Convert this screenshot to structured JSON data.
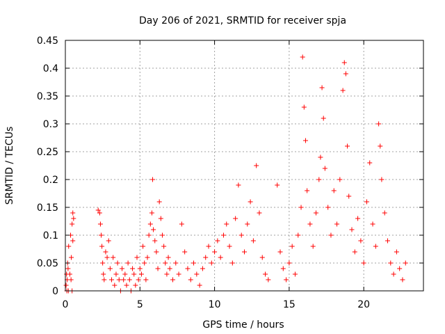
{
  "chart_data": {
    "type": "scatter",
    "title": "Day 206 of 2021, SRMTID for receiver spja",
    "xlabel": "GPS time / hours",
    "ylabel": "SRMTID / TECUs",
    "xlim": [
      0,
      24
    ],
    "ylim": [
      0,
      0.45
    ],
    "xticks": [
      0,
      5,
      10,
      15,
      20
    ],
    "yticks": [
      0,
      0.05,
      0.1,
      0.15,
      0.2,
      0.25,
      0.3,
      0.35,
      0.4,
      0.45
    ],
    "xtick_labels": [
      "0",
      "5",
      "10",
      "15",
      "20"
    ],
    "ytick_labels": [
      "0",
      "0.05",
      "0.1",
      "0.15",
      "0.2",
      "0.25",
      "0.3",
      "0.35",
      "0.4",
      "0.45"
    ],
    "grid": true,
    "marker": "+",
    "color": "#ff0000",
    "series": [
      {
        "name": "SRMTID",
        "points": [
          [
            0.05,
            0.01
          ],
          [
            0.08,
            0.03
          ],
          [
            0.1,
            0.0
          ],
          [
            0.12,
            0.02
          ],
          [
            0.15,
            0.05
          ],
          [
            0.18,
            0.04
          ],
          [
            0.2,
            0.0
          ],
          [
            0.22,
            0.08
          ],
          [
            0.3,
            0.03
          ],
          [
            0.35,
            0.1
          ],
          [
            0.4,
            0.06
          ],
          [
            0.45,
            0.12
          ],
          [
            0.5,
            0.14
          ],
          [
            0.5,
            0.09
          ],
          [
            0.55,
            0.13
          ],
          [
            0.45,
            0.0
          ],
          [
            0.38,
            0.02
          ],
          [
            2.2,
            0.145
          ],
          [
            2.3,
            0.14
          ],
          [
            2.35,
            0.12
          ],
          [
            2.4,
            0.1
          ],
          [
            2.45,
            0.08
          ],
          [
            2.5,
            0.05
          ],
          [
            2.55,
            0.03
          ],
          [
            2.6,
            0.02
          ],
          [
            2.7,
            0.07
          ],
          [
            2.8,
            0.06
          ],
          [
            2.9,
            0.09
          ],
          [
            3.0,
            0.04
          ],
          [
            3.1,
            0.02
          ],
          [
            3.2,
            0.06
          ],
          [
            3.3,
            0.01
          ],
          [
            3.4,
            0.03
          ],
          [
            3.5,
            0.05
          ],
          [
            3.6,
            0.02
          ],
          [
            3.7,
            0.0
          ],
          [
            3.8,
            0.04
          ],
          [
            3.9,
            0.02
          ],
          [
            4.0,
            0.03
          ],
          [
            4.1,
            0.01
          ],
          [
            4.2,
            0.05
          ],
          [
            4.3,
            0.02
          ],
          [
            4.4,
            0.0
          ],
          [
            4.5,
            0.04
          ],
          [
            4.6,
            0.03
          ],
          [
            4.7,
            0.01
          ],
          [
            4.8,
            0.06
          ],
          [
            4.9,
            0.02
          ],
          [
            5.0,
            0.04
          ],
          [
            5.1,
            0.03
          ],
          [
            5.2,
            0.08
          ],
          [
            5.3,
            0.05
          ],
          [
            5.4,
            0.02
          ],
          [
            5.5,
            0.06
          ],
          [
            5.6,
            0.1
          ],
          [
            5.7,
            0.12
          ],
          [
            5.8,
            0.14
          ],
          [
            5.85,
            0.2
          ],
          [
            5.9,
            0.11
          ],
          [
            6.0,
            0.09
          ],
          [
            6.1,
            0.07
          ],
          [
            6.2,
            0.04
          ],
          [
            6.3,
            0.16
          ],
          [
            6.4,
            0.13
          ],
          [
            6.5,
            0.1
          ],
          [
            6.6,
            0.08
          ],
          [
            6.7,
            0.05
          ],
          [
            6.8,
            0.03
          ],
          [
            6.9,
            0.06
          ],
          [
            7.0,
            0.04
          ],
          [
            7.2,
            0.02
          ],
          [
            7.4,
            0.05
          ],
          [
            7.6,
            0.03
          ],
          [
            7.8,
            0.12
          ],
          [
            8.0,
            0.07
          ],
          [
            8.2,
            0.04
          ],
          [
            8.4,
            0.02
          ],
          [
            8.6,
            0.05
          ],
          [
            8.8,
            0.03
          ],
          [
            9.0,
            0.01
          ],
          [
            9.2,
            0.04
          ],
          [
            9.4,
            0.06
          ],
          [
            9.6,
            0.08
          ],
          [
            9.8,
            0.05
          ],
          [
            10.0,
            0.07
          ],
          [
            10.2,
            0.09
          ],
          [
            10.4,
            0.06
          ],
          [
            10.6,
            0.1
          ],
          [
            10.8,
            0.12
          ],
          [
            11.0,
            0.08
          ],
          [
            11.2,
            0.05
          ],
          [
            11.4,
            0.13
          ],
          [
            11.6,
            0.19
          ],
          [
            11.8,
            0.1
          ],
          [
            12.0,
            0.07
          ],
          [
            12.2,
            0.12
          ],
          [
            12.4,
            0.16
          ],
          [
            12.6,
            0.09
          ],
          [
            12.8,
            0.225
          ],
          [
            13.0,
            0.14
          ],
          [
            13.2,
            0.06
          ],
          [
            13.4,
            0.03
          ],
          [
            13.6,
            0.02
          ],
          [
            14.2,
            0.19
          ],
          [
            14.4,
            0.07
          ],
          [
            14.6,
            0.04
          ],
          [
            14.8,
            0.02
          ],
          [
            15.0,
            0.05
          ],
          [
            15.2,
            0.08
          ],
          [
            15.4,
            0.03
          ],
          [
            15.6,
            0.1
          ],
          [
            15.8,
            0.15
          ],
          [
            15.9,
            0.42
          ],
          [
            16.0,
            0.33
          ],
          [
            16.1,
            0.27
          ],
          [
            16.2,
            0.18
          ],
          [
            16.4,
            0.12
          ],
          [
            16.6,
            0.08
          ],
          [
            16.8,
            0.14
          ],
          [
            17.0,
            0.2
          ],
          [
            17.1,
            0.24
          ],
          [
            17.2,
            0.365
          ],
          [
            17.3,
            0.31
          ],
          [
            17.4,
            0.22
          ],
          [
            17.6,
            0.15
          ],
          [
            17.8,
            0.1
          ],
          [
            18.0,
            0.18
          ],
          [
            18.2,
            0.12
          ],
          [
            18.4,
            0.2
          ],
          [
            18.6,
            0.36
          ],
          [
            18.7,
            0.41
          ],
          [
            18.8,
            0.39
          ],
          [
            18.9,
            0.26
          ],
          [
            19.0,
            0.17
          ],
          [
            19.2,
            0.11
          ],
          [
            19.4,
            0.07
          ],
          [
            19.6,
            0.13
          ],
          [
            19.8,
            0.09
          ],
          [
            20.0,
            0.05
          ],
          [
            20.2,
            0.16
          ],
          [
            20.4,
            0.23
          ],
          [
            20.6,
            0.12
          ],
          [
            20.8,
            0.08
          ],
          [
            21.0,
            0.3
          ],
          [
            21.1,
            0.26
          ],
          [
            21.2,
            0.2
          ],
          [
            21.4,
            0.14
          ],
          [
            21.6,
            0.09
          ],
          [
            21.8,
            0.05
          ],
          [
            22.0,
            0.03
          ],
          [
            22.2,
            0.07
          ],
          [
            22.4,
            0.04
          ],
          [
            22.6,
            0.02
          ],
          [
            22.8,
            0.05
          ]
        ]
      }
    ]
  }
}
